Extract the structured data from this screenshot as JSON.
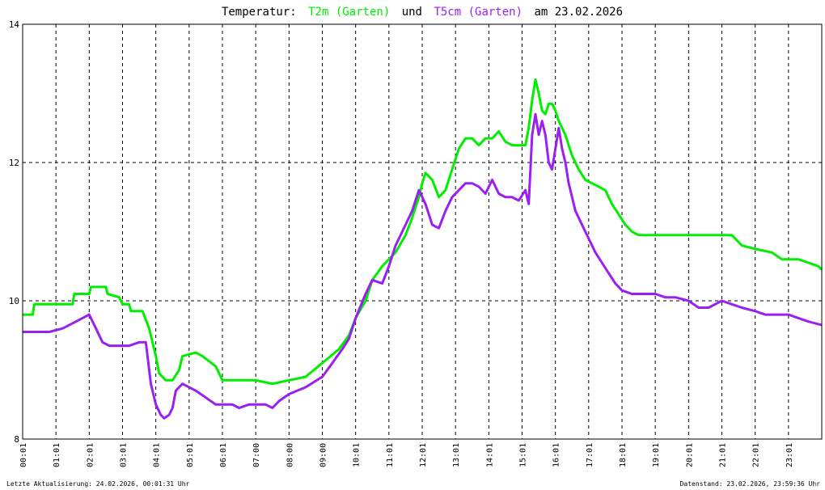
{
  "title": {
    "prefix": "Temperatur:",
    "series1": "T2m (Garten)",
    "connector": "und",
    "series2": "T5cm (Garten)",
    "suffix": "am 23.02.2026"
  },
  "footer": {
    "left": "Letzte Aktualisierung: 24.02.2026, 00:01:31 Uhr",
    "right": "Datenstand: 23.02.2026, 23:59:36 Uhr"
  },
  "colors": {
    "series1": "#00ee00",
    "series2": "#9a1ff2",
    "grid": "#000000",
    "background": "#ffffff"
  },
  "chart_data": {
    "type": "line",
    "xlim": [
      0,
      24
    ],
    "ylim": [
      8,
      14
    ],
    "grid": true,
    "x_tick_labels": [
      "00:01",
      "01:01",
      "02:01",
      "03:01",
      "04:01",
      "05:01",
      "06:01",
      "07:00",
      "08:00",
      "09:00",
      "10:01",
      "11:01",
      "12:01",
      "13:01",
      "14:01",
      "15:01",
      "16:01",
      "17:01",
      "18:01",
      "19:01",
      "20:01",
      "21:01",
      "22:01",
      "23:01"
    ],
    "y_ticks": [
      8,
      10,
      12,
      14
    ],
    "series": [
      {
        "name": "T2m (Garten)",
        "x": [
          0,
          0.3,
          0.35,
          1.5,
          1.55,
          2.0,
          2.05,
          2.5,
          2.55,
          2.9,
          3.0,
          3.2,
          3.25,
          3.6,
          3.8,
          4.0,
          4.1,
          4.3,
          4.5,
          4.7,
          4.8,
          5.2,
          5.4,
          5.8,
          6.0,
          6.5,
          7.0,
          7.5,
          8.0,
          8.5,
          9.0,
          9.5,
          9.8,
          10.0,
          10.3,
          10.5,
          10.8,
          11.0,
          11.2,
          11.5,
          11.7,
          11.9,
          12.0,
          12.1,
          12.3,
          12.5,
          12.7,
          12.9,
          13.1,
          13.3,
          13.5,
          13.7,
          13.9,
          14.1,
          14.3,
          14.5,
          14.7,
          14.9,
          15.1,
          15.2,
          15.3,
          15.4,
          15.5,
          15.6,
          15.7,
          15.8,
          15.9,
          16.0,
          16.1,
          16.3,
          16.5,
          16.7,
          16.9,
          17.1,
          17.3,
          17.5,
          17.7,
          17.9,
          18.1,
          18.3,
          18.5,
          18.8,
          19.0,
          19.3,
          19.6,
          20.0,
          20.5,
          20.8,
          21.0,
          21.3,
          21.6,
          22.0,
          22.5,
          22.8,
          23.0,
          23.3,
          23.6,
          23.9,
          24.0
        ],
        "y": [
          9.8,
          9.8,
          9.95,
          9.95,
          10.1,
          10.1,
          10.2,
          10.2,
          10.1,
          10.05,
          9.95,
          9.95,
          9.85,
          9.85,
          9.6,
          9.2,
          8.95,
          8.85,
          8.85,
          9.0,
          9.2,
          9.25,
          9.2,
          9.05,
          8.85,
          8.85,
          8.85,
          8.8,
          8.85,
          8.9,
          9.1,
          9.3,
          9.5,
          9.75,
          10.0,
          10.3,
          10.5,
          10.6,
          10.7,
          10.95,
          11.2,
          11.5,
          11.7,
          11.85,
          11.75,
          11.5,
          11.6,
          11.9,
          12.2,
          12.35,
          12.35,
          12.25,
          12.35,
          12.35,
          12.45,
          12.3,
          12.25,
          12.25,
          12.25,
          12.5,
          12.9,
          13.2,
          13.0,
          12.75,
          12.7,
          12.85,
          12.85,
          12.75,
          12.6,
          12.4,
          12.1,
          11.9,
          11.75,
          11.7,
          11.65,
          11.6,
          11.4,
          11.25,
          11.1,
          11.0,
          10.95,
          10.95,
          10.95,
          10.95,
          10.95,
          10.95,
          10.95,
          10.95,
          10.95,
          10.95,
          10.8,
          10.75,
          10.7,
          10.6,
          10.6,
          10.6,
          10.55,
          10.5,
          10.45
        ]
      },
      {
        "name": "T5cm (Garten)",
        "x": [
          0,
          0.5,
          0.8,
          1.2,
          1.6,
          2.0,
          2.2,
          2.4,
          2.6,
          2.8,
          3.0,
          3.2,
          3.5,
          3.7,
          3.85,
          4.0,
          4.15,
          4.25,
          4.4,
          4.5,
          4.6,
          4.8,
          5.0,
          5.2,
          5.5,
          5.8,
          6.0,
          6.3,
          6.5,
          6.8,
          7.0,
          7.3,
          7.5,
          7.7,
          8.0,
          8.5,
          9.0,
          9.3,
          9.6,
          9.8,
          10.0,
          10.3,
          10.5,
          10.8,
          11.0,
          11.2,
          11.5,
          11.7,
          11.9,
          12.1,
          12.3,
          12.5,
          12.7,
          12.9,
          13.1,
          13.3,
          13.5,
          13.7,
          13.9,
          14.1,
          14.3,
          14.5,
          14.7,
          14.9,
          15.1,
          15.2,
          15.3,
          15.4,
          15.5,
          15.6,
          15.7,
          15.8,
          15.9,
          16.0,
          16.1,
          16.2,
          16.3,
          16.4,
          16.5,
          16.6,
          16.8,
          17.0,
          17.2,
          17.4,
          17.6,
          17.8,
          18.0,
          18.3,
          18.6,
          19.0,
          19.3,
          19.6,
          20.0,
          20.3,
          20.6,
          21.0,
          21.3,
          21.6,
          22.0,
          22.3,
          22.6,
          23.0,
          23.3,
          23.6,
          24.0
        ],
        "y": [
          9.55,
          9.55,
          9.55,
          9.6,
          9.7,
          9.8,
          9.6,
          9.4,
          9.35,
          9.35,
          9.35,
          9.35,
          9.4,
          9.4,
          8.8,
          8.5,
          8.35,
          8.3,
          8.35,
          8.45,
          8.7,
          8.8,
          8.75,
          8.7,
          8.6,
          8.5,
          8.5,
          8.5,
          8.45,
          8.5,
          8.5,
          8.5,
          8.45,
          8.55,
          8.65,
          8.75,
          8.9,
          9.1,
          9.3,
          9.45,
          9.75,
          10.1,
          10.3,
          10.25,
          10.5,
          10.8,
          11.1,
          11.3,
          11.6,
          11.4,
          11.1,
          11.05,
          11.3,
          11.5,
          11.6,
          11.7,
          11.7,
          11.65,
          11.55,
          11.75,
          11.55,
          11.5,
          11.5,
          11.45,
          11.6,
          11.4,
          12.4,
          12.7,
          12.4,
          12.6,
          12.4,
          12.0,
          11.9,
          12.2,
          12.5,
          12.2,
          12.0,
          11.7,
          11.5,
          11.3,
          11.1,
          10.9,
          10.7,
          10.55,
          10.4,
          10.25,
          10.15,
          10.1,
          10.1,
          10.1,
          10.05,
          10.05,
          10.0,
          9.9,
          9.9,
          10.0,
          9.95,
          9.9,
          9.85,
          9.8,
          9.8,
          9.8,
          9.75,
          9.7,
          9.65
        ]
      }
    ]
  }
}
